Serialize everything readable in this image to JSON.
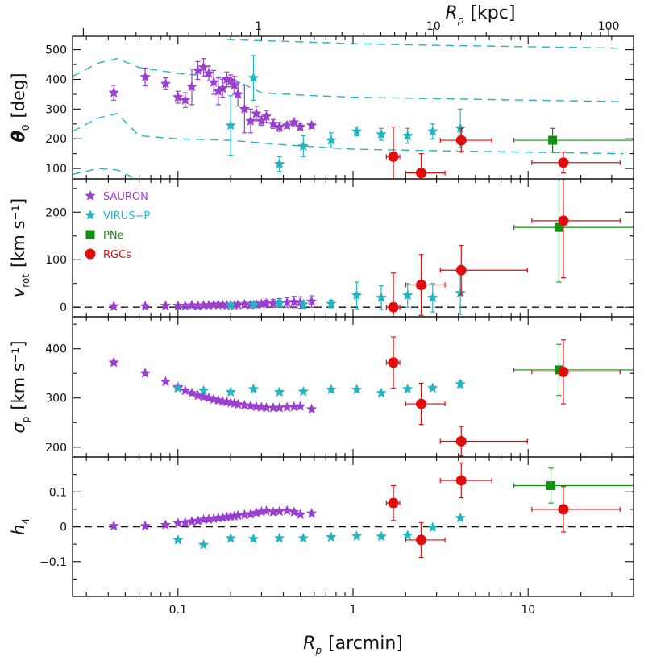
{
  "chart_data": {
    "type": "scatter",
    "x_axis": {
      "label": "R",
      "label_sub": "p",
      "unit": "[arcmin]",
      "scale": "log",
      "range": [
        0.025,
        40
      ],
      "tick_labels": [
        {
          "v": 0.1,
          "t": "0.1"
        },
        {
          "v": 1,
          "t": "1"
        },
        {
          "v": 10,
          "t": "10"
        }
      ]
    },
    "top_axis": {
      "label": "R",
      "label_sub": "p",
      "unit": "[kpc]",
      "scale": "log",
      "kpc_per_arcmin": 3.47,
      "tick_labels": [
        {
          "v": 1,
          "t": "1"
        },
        {
          "v": 10,
          "t": "10"
        },
        {
          "v": 100,
          "t": "100"
        }
      ]
    },
    "legend": {
      "placement": "upper-left of second panel",
      "entries": [
        {
          "name": "SAURON",
          "marker": "star",
          "color": "#9a3fd0"
        },
        {
          "name": "VIRUS−P",
          "marker": "star",
          "color": "#22b5c2"
        },
        {
          "name": "PNe",
          "marker": "square",
          "color": "#109010"
        },
        {
          "name": "RGCs",
          "marker": "circle",
          "color": "#e00d0d"
        }
      ]
    },
    "panels": [
      {
        "id": "theta",
        "ylabel": "θ",
        "ylabel_sub": "0",
        "yunit": "[deg]",
        "ylim": [
          65,
          545
        ],
        "yticks": [
          100,
          200,
          300,
          400,
          500
        ],
        "reference_line": null,
        "dashed_curves": [
          {
            "x": [
              0.025,
              0.035,
              0.045,
              0.06,
              0.1,
              0.2,
              0.3,
              0.6,
              1,
              3,
              10,
              35
            ],
            "y": [
              410,
              455,
              470,
              440,
              420,
              405,
              355,
              345,
              340,
              335,
              330,
              325
            ]
          },
          {
            "x": [
              0.025,
              0.035,
              0.045,
              0.06,
              0.1,
              0.2,
              0.4,
              1,
              3,
              10,
              35
            ],
            "y": [
              225,
              270,
              285,
              210,
              200,
              195,
              180,
              165,
              160,
              155,
              150
            ]
          },
          {
            "x": [
              0.19,
              0.3,
              0.6,
              1,
              3,
              10,
              35
            ],
            "y": [
              535,
              530,
              525,
              520,
              515,
              510,
              505
            ]
          },
          {
            "x": [
              0.025,
              0.035,
              0.045,
              0.06
            ],
            "y": [
              80,
              100,
              95,
              60
            ]
          }
        ],
        "series": [
          {
            "name": "SAURON",
            "x": [
              0.043,
              0.065,
              0.085,
              0.1,
              0.11,
              0.12,
              0.13,
              0.14,
              0.15,
              0.16,
              0.17,
              0.18,
              0.19,
              0.2,
              0.21,
              0.22,
              0.24,
              0.26,
              0.28,
              0.3,
              0.32,
              0.35,
              0.38,
              0.42,
              0.46,
              0.5,
              0.58
            ],
            "y": [
              355,
              408,
              385,
              340,
              330,
              375,
              430,
              440,
              420,
              390,
              360,
              370,
              400,
              395,
              380,
              350,
              300,
              260,
              285,
              260,
              275,
              250,
              240,
              245,
              255,
              240,
              245
            ],
            "err": [
              25,
              30,
              20,
              20,
              25,
              60,
              30,
              30,
              25,
              40,
              45,
              30,
              25,
              20,
              30,
              40,
              80,
              40,
              25,
              15,
              20,
              15,
              15,
              10,
              15,
              10,
              10
            ]
          },
          {
            "name": "VIRUS−P",
            "x": [
              0.2,
              0.27,
              0.38,
              0.52,
              0.75,
              1.05,
              1.45,
              2.05,
              2.85,
              4.1
            ],
            "y": [
              245,
              405,
              115,
              175,
              195,
              225,
              215,
              210,
              225,
              235
            ],
            "err": [
              100,
              75,
              25,
              35,
              25,
              15,
              20,
              25,
              25,
              65
            ]
          },
          {
            "name": "PNe",
            "x": [
              13.8
            ],
            "y": [
              195
            ],
            "xlo": [
              8.3
            ],
            "xhi": [
              40
            ],
            "err": [
              40
            ]
          },
          {
            "name": "RGCs",
            "x": [
              1.7,
              2.45,
              4.15,
              15.9
            ],
            "y": [
              140,
              85,
              195,
              120
            ],
            "xlo": [
              1.55,
              2.0,
              3.15,
              10.5
            ],
            "xhi": [
              1.85,
              3.35,
              6.2,
              33.5
            ],
            "err": [
              100,
              65,
              40,
              35
            ]
          }
        ]
      },
      {
        "id": "vrot",
        "ylabel": "v",
        "ylabel_sub": "rot",
        "yunit": "[km s⁻¹]",
        "ylim": [
          -20,
          270
        ],
        "yticks": [
          0,
          100,
          200
        ],
        "reference_line": 0,
        "dashed_curves": [],
        "series": [
          {
            "name": "SAURON",
            "x": [
              0.043,
              0.065,
              0.085,
              0.1,
              0.11,
              0.12,
              0.13,
              0.14,
              0.15,
              0.16,
              0.17,
              0.18,
              0.19,
              0.2,
              0.21,
              0.22,
              0.24,
              0.26,
              0.28,
              0.3,
              0.32,
              0.35,
              0.38,
              0.42,
              0.46,
              0.5,
              0.58
            ],
            "y": [
              2,
              2,
              3,
              3,
              3,
              4,
              3,
              4,
              4,
              5,
              5,
              5,
              4,
              5,
              4,
              5,
              6,
              5,
              6,
              7,
              8,
              8,
              9,
              10,
              11,
              10,
              12
            ],
            "err": [
              2,
              2,
              2,
              3,
              3,
              3,
              3,
              3,
              3,
              4,
              4,
              4,
              4,
              4,
              4,
              5,
              6,
              6,
              6,
              6,
              7,
              8,
              9,
              10,
              12,
              12,
              12
            ]
          },
          {
            "name": "VIRUS−P",
            "x": [
              0.2,
              0.27,
              0.38,
              0.52,
              0.75,
              1.05,
              1.45,
              2.05,
              2.85,
              4.1
            ],
            "y": [
              4,
              5,
              8,
              6,
              7,
              25,
              20,
              25,
              20,
              30
            ],
            "err": [
              4,
              5,
              7,
              8,
              8,
              28,
              25,
              25,
              30,
              45
            ]
          },
          {
            "name": "PNe",
            "x": [
              15.0
            ],
            "y": [
              168
            ],
            "xlo": [
              8.3
            ],
            "xhi": [
              40
            ],
            "err": [
              115
            ]
          },
          {
            "name": "RGCs",
            "x": [
              1.7,
              2.45,
              4.15,
              15.9
            ],
            "y": [
              0,
              47,
              78,
              182
            ],
            "xlo": [
              1.55,
              2.0,
              3.15,
              10.5
            ],
            "xhi": [
              1.85,
              3.35,
              9.9,
              33.5
            ],
            "err": [
              72,
              64,
              52,
              120
            ]
          }
        ]
      },
      {
        "id": "sigma",
        "ylabel": "σ",
        "ylabel_sub": "p",
        "yunit": "[km s⁻¹]",
        "ylim": [
          180,
          465
        ],
        "yticks": [
          200,
          300,
          400
        ],
        "reference_line": null,
        "dashed_curves": [],
        "series": [
          {
            "name": "SAURON",
            "x": [
              0.043,
              0.065,
              0.085,
              0.1,
              0.11,
              0.12,
              0.13,
              0.14,
              0.15,
              0.16,
              0.17,
              0.18,
              0.19,
              0.2,
              0.21,
              0.22,
              0.24,
              0.26,
              0.28,
              0.3,
              0.32,
              0.35,
              0.38,
              0.42,
              0.46,
              0.5,
              0.58
            ],
            "y": [
              372,
              350,
              333,
              322,
              315,
              310,
              305,
              302,
              300,
              297,
              295,
              293,
              292,
              290,
              289,
              287,
              285,
              284,
              282,
              281,
              280,
              280,
              280,
              281,
              282,
              283,
              277
            ],
            "err": [
              2,
              2,
              2,
              2,
              2,
              2,
              2,
              2,
              2,
              2,
              2,
              2,
              2,
              2,
              2,
              2,
              2,
              2,
              2,
              2,
              2,
              2,
              2,
              2,
              2,
              2,
              2
            ]
          },
          {
            "name": "VIRUS−P",
            "x": [
              0.1,
              0.14,
              0.2,
              0.27,
              0.38,
              0.52,
              0.75,
              1.05,
              1.45,
              2.05,
              2.85,
              4.1
            ],
            "y": [
              320,
              315,
              312,
              318,
              312,
              313,
              317,
              317,
              310,
              318,
              320,
              328
            ],
            "err": [
              3,
              3,
              3,
              3,
              3,
              3,
              3,
              3,
              3,
              4,
              4,
              6
            ]
          },
          {
            "name": "PNe",
            "x": [
              15.0
            ],
            "y": [
              357
            ],
            "xlo": [
              8.3
            ],
            "xhi": [
              40
            ],
            "err": [
              52
            ]
          },
          {
            "name": "RGCs",
            "x": [
              1.7,
              2.45,
              4.15,
              15.9
            ],
            "y": [
              372,
              288,
              212,
              353
            ],
            "xlo": [
              1.55,
              2.0,
              3.15,
              10.5
            ],
            "xhi": [
              1.85,
              3.35,
              9.9,
              33.5
            ],
            "err": [
              52,
              42,
              30,
              65
            ]
          }
        ]
      },
      {
        "id": "h4",
        "ylabel": "h",
        "ylabel_sub": "4",
        "yunit": "",
        "ylim": [
          -0.2,
          0.2
        ],
        "yticks": [
          -0.1,
          0,
          0.1
        ],
        "ytick_labels": [
          "−0.1",
          "0",
          "0.1"
        ],
        "reference_line": 0,
        "dashed_curves": [],
        "series": [
          {
            "name": "SAURON",
            "x": [
              0.043,
              0.065,
              0.085,
              0.1,
              0.11,
              0.12,
              0.13,
              0.14,
              0.15,
              0.16,
              0.17,
              0.18,
              0.19,
              0.2,
              0.21,
              0.22,
              0.24,
              0.26,
              0.28,
              0.3,
              0.32,
              0.35,
              0.38,
              0.42,
              0.46,
              0.5,
              0.58
            ],
            "y": [
              0.002,
              0.002,
              0.005,
              0.01,
              0.012,
              0.015,
              0.017,
              0.02,
              0.021,
              0.023,
              0.025,
              0.026,
              0.028,
              0.029,
              0.03,
              0.032,
              0.034,
              0.036,
              0.04,
              0.043,
              0.045,
              0.042,
              0.044,
              0.046,
              0.042,
              0.035,
              0.038
            ],
            "err": [
              0.002,
              0.002,
              0.002,
              0.003,
              0.003,
              0.003,
              0.003,
              0.003,
              0.003,
              0.003,
              0.003,
              0.003,
              0.003,
              0.003,
              0.003,
              0.004,
              0.004,
              0.004,
              0.004,
              0.004,
              0.004,
              0.004,
              0.004,
              0.005,
              0.005,
              0.005,
              0.005
            ]
          },
          {
            "name": "VIRUS−P",
            "x": [
              0.1,
              0.14,
              0.2,
              0.27,
              0.38,
              0.52,
              0.75,
              1.05,
              1.45,
              2.05,
              2.85,
              4.1
            ],
            "y": [
              -0.038,
              -0.052,
              -0.033,
              -0.035,
              -0.033,
              -0.033,
              -0.03,
              -0.027,
              -0.028,
              -0.025,
              -0.002,
              0.025
            ],
            "err": [
              0.003,
              0.003,
              0.003,
              0.003,
              0.003,
              0.003,
              0.003,
              0.003,
              0.003,
              0.003,
              0.003,
              0.003
            ]
          },
          {
            "name": "PNe",
            "x": [
              13.5
            ],
            "y": [
              0.118
            ],
            "xlo": [
              8.3
            ],
            "xhi": [
              40
            ],
            "err": [
              0.05
            ]
          },
          {
            "name": "RGCs",
            "x": [
              1.7,
              2.45,
              4.15,
              15.9
            ],
            "y": [
              0.068,
              -0.038,
              0.133,
              0.05
            ],
            "xlo": [
              1.55,
              2.0,
              3.15,
              10.5
            ],
            "xhi": [
              1.85,
              3.35,
              6.2,
              33.5
            ],
            "err": [
              0.05,
              0.05,
              0.05,
              0.065
            ]
          }
        ]
      }
    ]
  }
}
